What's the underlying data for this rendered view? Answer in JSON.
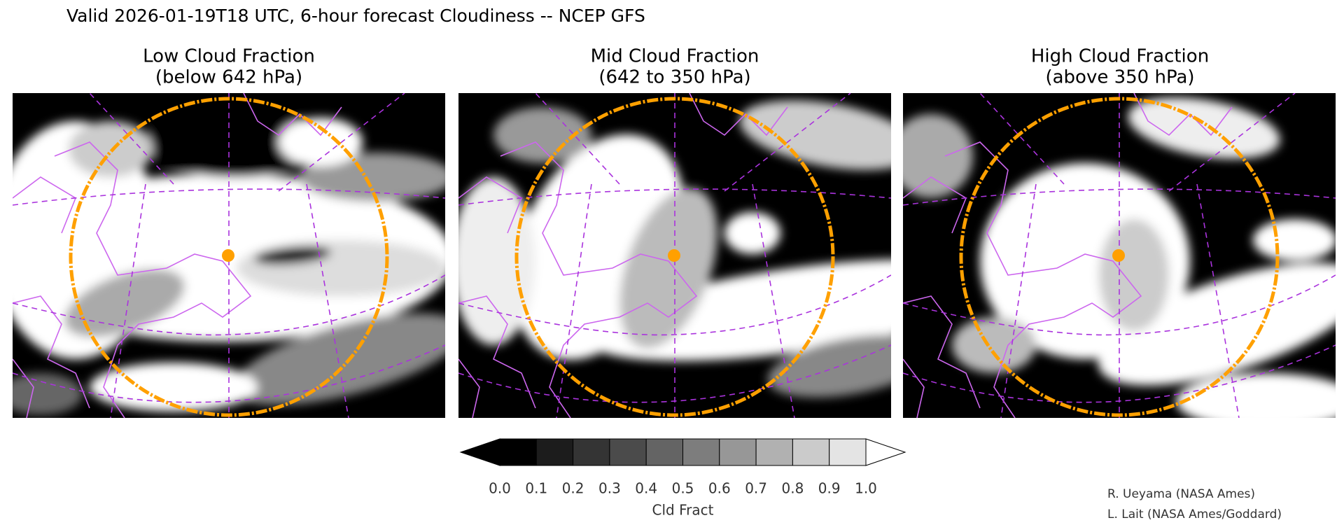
{
  "title": "Valid 2026-01-19T18 UTC, 6-hour forecast Cloudiness -- NCEP GFS",
  "panels": [
    {
      "title": "Low Cloud Fraction",
      "subtitle": "(below 642 hPa)"
    },
    {
      "title": "Mid Cloud Fraction",
      "subtitle": "(642 to 350 hPa)"
    },
    {
      "title": "High Cloud Fraction",
      "subtitle": "(above 350 hPa)"
    }
  ],
  "colorbar": {
    "label": "Cld Fract",
    "under_color": "#000000",
    "over_color": "#ffffff",
    "colors": [
      "#000000",
      "#1c1c1c",
      "#343434",
      "#4b4b4b",
      "#646464",
      "#7d7d7d",
      "#979797",
      "#b1b1b1",
      "#cbcbcb",
      "#e4e4e4"
    ],
    "ticks": [
      {
        "value": 0,
        "label": "0.0"
      },
      {
        "value": 0.1,
        "label": "0.1"
      },
      {
        "value": 0.2,
        "label": "0.2"
      },
      {
        "value": 0.3,
        "label": "0.3"
      },
      {
        "value": 0.4,
        "label": "0.4"
      },
      {
        "value": 0.5,
        "label": "0.5"
      },
      {
        "value": 0.6,
        "label": "0.6"
      },
      {
        "value": 0.7,
        "label": "0.7"
      },
      {
        "value": 0.8,
        "label": "0.8"
      },
      {
        "value": 0.9,
        "label": "0.9"
      },
      {
        "value": 1,
        "label": "1.0"
      }
    ]
  },
  "credits": [
    "R. Ueyama (NASA Ames)",
    "L. Lait (NASA Ames/Goddard)"
  ]
}
